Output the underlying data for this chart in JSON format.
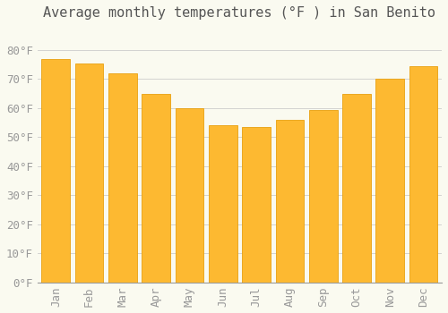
{
  "title": "Average monthly temperatures (°F ) in San Benito",
  "months": [
    "Jan",
    "Feb",
    "Mar",
    "Apr",
    "May",
    "Jun",
    "Jul",
    "Aug",
    "Sep",
    "Oct",
    "Nov",
    "Dec"
  ],
  "values": [
    77,
    75.5,
    72,
    65,
    60,
    54,
    53.5,
    56,
    59.5,
    65,
    70,
    74.5
  ],
  "bar_color": "#FDB931",
  "bar_edge_color": "#E8A010",
  "background_color": "#FAFAF0",
  "grid_color": "#CCCCCC",
  "text_color": "#999999",
  "title_color": "#555555",
  "ylim": [
    0,
    88
  ],
  "yticks": [
    0,
    10,
    20,
    30,
    40,
    50,
    60,
    70,
    80
  ],
  "ytick_labels": [
    "0°F",
    "10°F",
    "20°F",
    "30°F",
    "40°F",
    "50°F",
    "60°F",
    "70°F",
    "80°F"
  ],
  "title_fontsize": 11,
  "tick_fontsize": 9,
  "font_family": "monospace",
  "bar_width": 0.85,
  "figsize": [
    5.0,
    3.5
  ],
  "dpi": 100
}
